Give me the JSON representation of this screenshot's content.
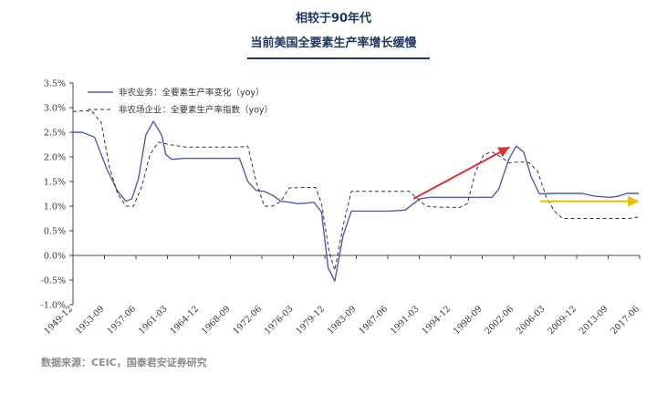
{
  "title_line1": "相较于90年代",
  "title_line2": "当前美国全要素生产率增长缓慢",
  "source": "数据来源：CEIC，国泰君安证券研究",
  "colors": {
    "title": "#1f3864",
    "series_solid": "#4f5db4",
    "series_dashed": "#333333",
    "arrow_up": "#d93030",
    "arrow_flat": "#e8c000",
    "source_text": "#8c8c8c"
  },
  "chart_data": {
    "type": "line",
    "ylim": [
      -1.0,
      3.5
    ],
    "y_ticks": [
      "-1.0%",
      "-0.5%",
      "0.0%",
      "0.5%",
      "1.0%",
      "1.5%",
      "2.0%",
      "2.5%",
      "3.0%",
      "3.5%"
    ],
    "x_tick_labels": [
      "1949-12",
      "1953-09",
      "1957-06",
      "1961-03",
      "1964-12",
      "1968-09",
      "1972-06",
      "1976-03",
      "1979-12",
      "1983-09",
      "1987-06",
      "1991-03",
      "1994-12",
      "1998-09",
      "2002-06",
      "2006-03",
      "2009-12",
      "2013-09",
      "2017-06"
    ],
    "grid": false,
    "legend_position": "top-left",
    "series": [
      {
        "name": "非农业务：全要素生产率变化（yoy）",
        "style": "solid",
        "x": [
          1949.9,
          1951,
          1952.5,
          1954,
          1955.3,
          1956.3,
          1957,
          1957.8,
          1958.7,
          1959.6,
          1960.6,
          1961.1,
          1961.8,
          1962.5,
          1963.3,
          1964.2,
          1966,
          1968,
          1970,
          1971,
          1972,
          1973,
          1974,
          1975,
          1976,
          1977,
          1978,
          1979,
          1979.9,
          1980.7,
          1981.5,
          1982.5,
          1983.5,
          1984.6,
          1986,
          1988,
          1990,
          1991,
          1991.8,
          1993,
          1995,
          1998,
          1999.4,
          2000.5,
          2001.3,
          2002.5,
          2003.4,
          2004.3,
          2005.2,
          2006.2,
          2008,
          2010,
          2011.3,
          2013,
          2014.7,
          2015.7,
          2016.7,
          2018.2
        ],
        "values": [
          2.5,
          2.5,
          2.4,
          1.75,
          1.3,
          1.1,
          1.15,
          1.55,
          2.45,
          2.72,
          2.45,
          2.05,
          1.95,
          1.96,
          1.97,
          1.97,
          1.97,
          1.97,
          1.97,
          1.5,
          1.32,
          1.3,
          1.22,
          1.1,
          1.08,
          1.05,
          1.06,
          1.08,
          0.88,
          -0.25,
          -0.52,
          0.4,
          0.9,
          0.9,
          0.9,
          0.9,
          0.92,
          1.05,
          1.15,
          1.18,
          1.18,
          1.18,
          1.18,
          1.18,
          1.35,
          1.95,
          2.22,
          2.1,
          1.6,
          1.25,
          1.26,
          1.26,
          1.26,
          1.2,
          1.18,
          1.2,
          1.26,
          1.26
        ]
      },
      {
        "name": "非农场企业：全要素生产率指数（yoy）",
        "style": "dashed",
        "x": [
          1949.9,
          1951.3,
          1952.2,
          1953.3,
          1954.3,
          1955.3,
          1956.3,
          1957.2,
          1958.2,
          1959.2,
          1960.2,
          1961.5,
          1963.5,
          1966,
          1968,
          1970,
          1971,
          1972,
          1973,
          1974,
          1975,
          1976,
          1978,
          1979.2,
          1979.9,
          1980.8,
          1981.5,
          1982.5,
          1983.5,
          1985,
          1987,
          1989,
          1990.5,
          1991.5,
          1992.5,
          1994,
          1995.5,
          1996.5,
          1997.5,
          1998.5,
          1999.5,
          2000.5,
          2001.5,
          2002.6,
          2003.8,
          2005,
          2006,
          2007,
          2008,
          2009,
          2010.5,
          2013,
          2015,
          2017,
          2018.2
        ],
        "values": [
          2.92,
          2.94,
          2.92,
          2.7,
          1.8,
          1.25,
          1.0,
          1.0,
          1.4,
          2.05,
          2.3,
          2.25,
          2.2,
          2.2,
          2.2,
          2.2,
          2.22,
          1.5,
          1.0,
          1.0,
          1.1,
          1.37,
          1.38,
          1.38,
          1.05,
          0.1,
          -0.3,
          0.6,
          1.3,
          1.3,
          1.3,
          1.3,
          1.3,
          1.15,
          1.0,
          0.98,
          0.98,
          0.97,
          1.05,
          1.7,
          2.05,
          2.1,
          2.0,
          1.88,
          1.9,
          1.88,
          1.7,
          1.2,
          0.9,
          0.75,
          0.75,
          0.75,
          0.75,
          0.75,
          0.78
        ]
      }
    ],
    "annotations": [
      {
        "type": "arrow",
        "color": "red",
        "from": [
          1991.0,
          1.15
        ],
        "to": [
          2002.6,
          2.2
        ]
      },
      {
        "type": "arrow",
        "color": "yellow",
        "from": [
          2006.3,
          1.1
        ],
        "to": [
          2018.2,
          1.1
        ]
      }
    ]
  }
}
